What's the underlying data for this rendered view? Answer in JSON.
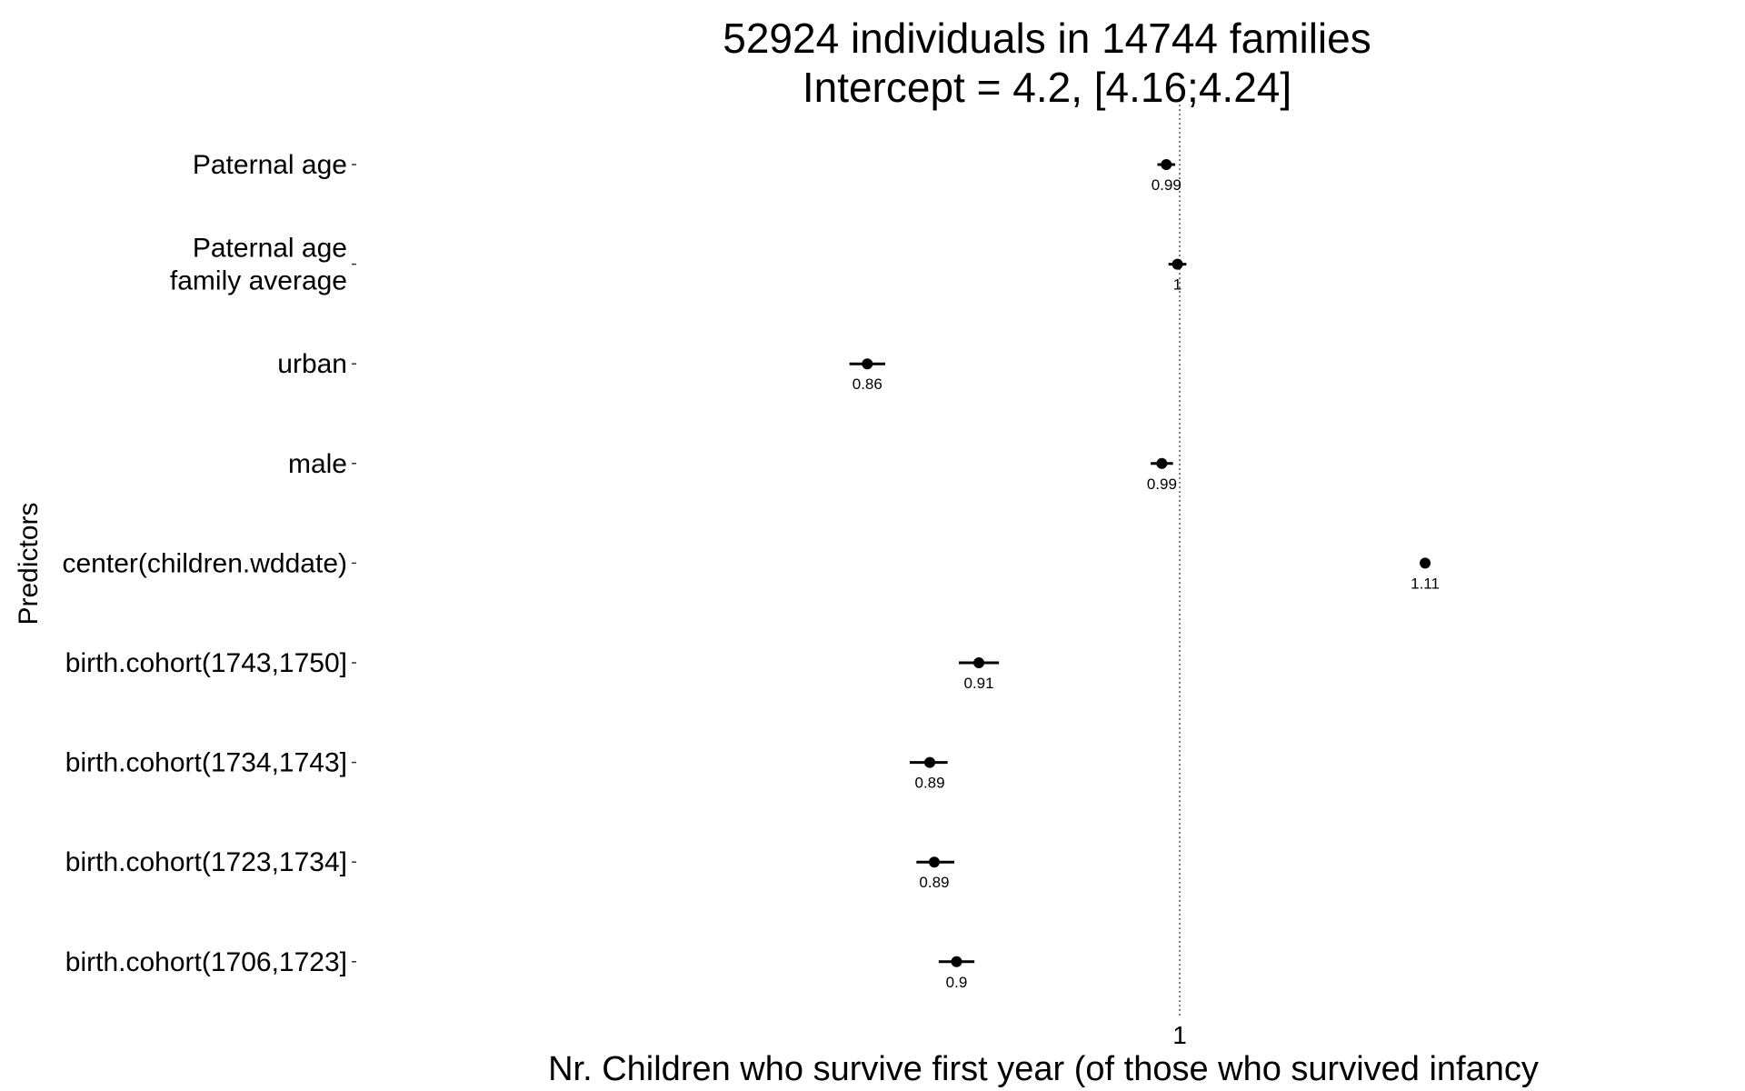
{
  "chart_data": {
    "type": "scatter",
    "title_line1": "52924 individuals in 14744 families",
    "title_line2": "Intercept = 4.2, [4.16;4.24]",
    "xlabel": "Nr. Children who survive first year (of those who survived infancy",
    "ylabel": "Predictors",
    "x_reference": 1,
    "x_ticks": [
      "1"
    ],
    "xlim": [
      0.825,
      1.125
    ],
    "predictors": [
      {
        "label": "Paternal age",
        "estimate": 0.994,
        "lower": 0.99,
        "upper": 0.998,
        "value_label": "0.99"
      },
      {
        "label": "Paternal age\nfamily average",
        "estimate": 0.999,
        "lower": 0.995,
        "upper": 1.003,
        "value_label": "1"
      },
      {
        "label": "urban",
        "estimate": 0.86,
        "lower": 0.852,
        "upper": 0.868,
        "value_label": "0.86"
      },
      {
        "label": "male",
        "estimate": 0.992,
        "lower": 0.987,
        "upper": 0.997,
        "value_label": "0.99"
      },
      {
        "label": "center(children.wddate)",
        "estimate": 1.11,
        "lower": 1.11,
        "upper": 1.11,
        "value_label": "1.11"
      },
      {
        "label": "birth.cohort(1743,1750]",
        "estimate": 0.91,
        "lower": 0.901,
        "upper": 0.919,
        "value_label": "0.91"
      },
      {
        "label": "birth.cohort(1734,1743]",
        "estimate": 0.888,
        "lower": 0.879,
        "upper": 0.896,
        "value_label": "0.89"
      },
      {
        "label": "birth.cohort(1723,1734]",
        "estimate": 0.89,
        "lower": 0.882,
        "upper": 0.899,
        "value_label": "0.89"
      },
      {
        "label": "birth.cohort(1706,1723]",
        "estimate": 0.9,
        "lower": 0.892,
        "upper": 0.908,
        "value_label": "0.9"
      }
    ]
  }
}
